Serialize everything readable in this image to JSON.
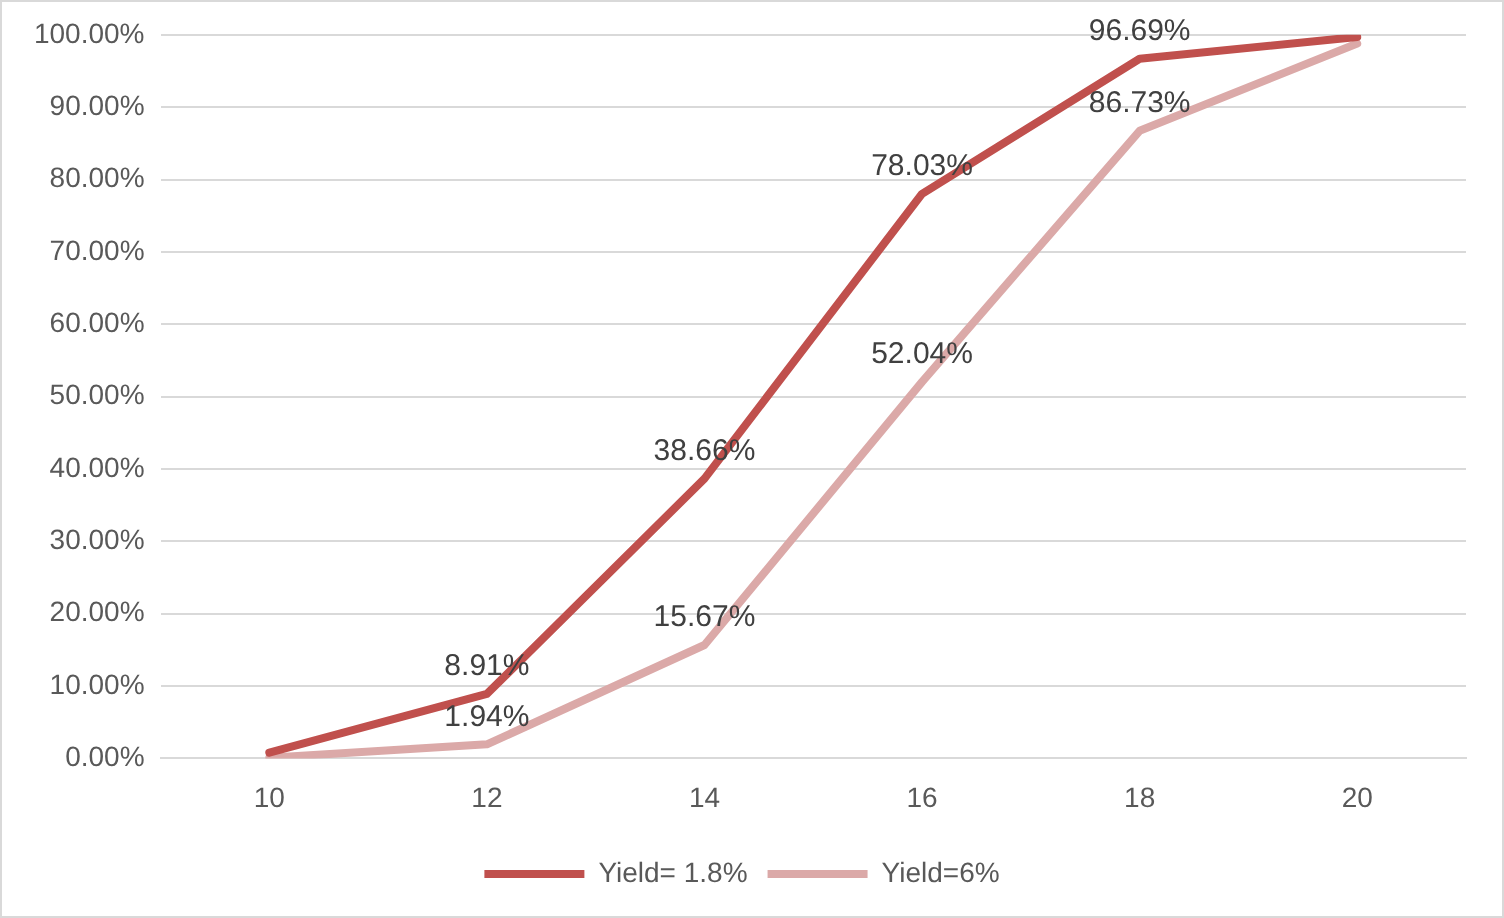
{
  "chart_data": {
    "type": "line",
    "categories": [
      "10",
      "12",
      "14",
      "16",
      "18",
      "20"
    ],
    "series": [
      {
        "name": "Yield= 1.8%",
        "color": "#c0504d",
        "values": [
          0.8,
          8.91,
          38.66,
          78.03,
          96.69,
          99.7
        ],
        "value_labels": [
          null,
          "8.91%",
          "38.66%",
          "78.03%",
          "96.69%",
          null
        ]
      },
      {
        "name": "Yield=6%",
        "color": "#dba9a8",
        "values": [
          0.1,
          1.94,
          15.67,
          52.04,
          86.73,
          98.8
        ],
        "value_labels": [
          null,
          "1.94%",
          "15.67%",
          "52.04%",
          "86.73%",
          null
        ]
      }
    ],
    "ylim": [
      0,
      100
    ],
    "yticks": [
      {
        "value": 0,
        "label": "0.00%"
      },
      {
        "value": 10,
        "label": "10.00%"
      },
      {
        "value": 20,
        "label": "20.00%"
      },
      {
        "value": 30,
        "label": "30.00%"
      },
      {
        "value": 40,
        "label": "40.00%"
      },
      {
        "value": 50,
        "label": "50.00%"
      },
      {
        "value": 60,
        "label": "60.00%"
      },
      {
        "value": 70,
        "label": "70.00%"
      },
      {
        "value": 80,
        "label": "80.00%"
      },
      {
        "value": 90,
        "label": "90.00%"
      },
      {
        "value": 100,
        "label": "100.00%"
      }
    ],
    "grid": "y",
    "legend": "bottom",
    "marker": "none",
    "line_style": "solid"
  }
}
